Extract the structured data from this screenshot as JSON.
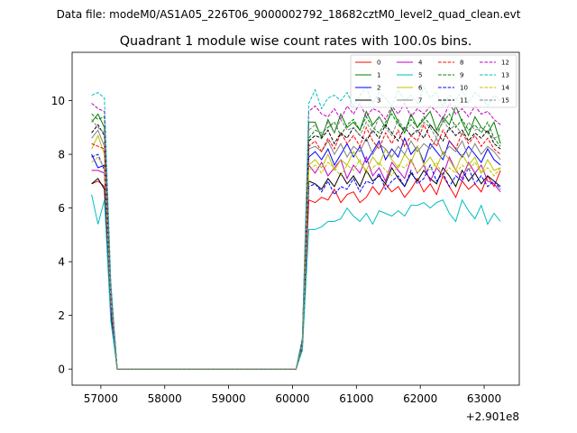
{
  "chart_data": {
    "type": "line",
    "suptitle": "Data file: modeM0/AS1A05_226T06_9000002792_18682cztM0_level2_quad_clean.evt",
    "title": "Quadrant 1 module wise count rates with 100.0s bins.",
    "xlabel": "",
    "ylabel": "",
    "x_offset_label": "+2.901e8",
    "xlim": [
      56550,
      63550
    ],
    "ylim": [
      -0.6,
      11.8
    ],
    "x_ticks": [
      57000,
      58000,
      59000,
      60000,
      61000,
      62000,
      63000
    ],
    "y_ticks": [
      0,
      2,
      4,
      6,
      8,
      10
    ],
    "legend_position": "upper right",
    "legend_columns": 4,
    "x": [
      56855,
      56955,
      57055,
      57155,
      57255,
      57355,
      57455,
      57555,
      57655,
      57755,
      57855,
      57955,
      58055,
      58155,
      58255,
      58355,
      58455,
      58555,
      58655,
      58755,
      58855,
      58955,
      59055,
      59155,
      59255,
      59355,
      59455,
      59555,
      59655,
      59755,
      59855,
      59955,
      60055,
      60155,
      60255,
      60355,
      60455,
      60555,
      60655,
      60755,
      60855,
      60955,
      61055,
      61155,
      61255,
      61355,
      61455,
      61555,
      61655,
      61755,
      61855,
      61955,
      62055,
      62155,
      62255,
      62355,
      62455,
      62555,
      62655,
      62755,
      62855,
      62955,
      63055,
      63155,
      63255
    ],
    "series": [
      {
        "name": "0",
        "color": "#ff0000",
        "dash": "solid",
        "values": [
          6.9,
          7.0,
          6.8,
          2.1,
          0,
          0,
          0,
          0,
          0,
          0,
          0,
          0,
          0,
          0,
          0,
          0,
          0,
          0,
          0,
          0,
          0,
          0,
          0,
          0,
          0,
          0,
          0,
          0,
          0,
          0,
          0,
          0,
          0,
          0.8,
          6.3,
          6.2,
          6.4,
          6.3,
          6.7,
          6.2,
          6.5,
          6.6,
          6.2,
          6.4,
          6.8,
          6.5,
          6.9,
          6.6,
          6.8,
          6.4,
          6.7,
          7.1,
          6.6,
          6.9,
          6.5,
          7.2,
          6.8,
          6.4,
          7.0,
          6.7,
          6.9,
          6.6,
          7.2,
          6.8,
          7.4
        ]
      },
      {
        "name": "1",
        "color": "#008000",
        "dash": "solid",
        "values": [
          9.2,
          9.5,
          9.0,
          3.0,
          0,
          0,
          0,
          0,
          0,
          0,
          0,
          0,
          0,
          0,
          0,
          0,
          0,
          0,
          0,
          0,
          0,
          0,
          0,
          0,
          0,
          0,
          0,
          0,
          0,
          0,
          0,
          0,
          0,
          1.1,
          9.2,
          9.2,
          8.6,
          9.3,
          8.8,
          9.5,
          9.0,
          9.2,
          8.9,
          9.6,
          9.1,
          9.4,
          9.0,
          9.7,
          9.2,
          8.8,
          9.5,
          9.0,
          9.3,
          9.6,
          8.9,
          9.4,
          9.1,
          9.8,
          9.2,
          8.7,
          9.4,
          9.0,
          8.8,
          9.2,
          8.4
        ]
      },
      {
        "name": "2",
        "color": "#0000ff",
        "dash": "solid",
        "values": [
          8.0,
          7.5,
          7.6,
          2.6,
          0,
          0,
          0,
          0,
          0,
          0,
          0,
          0,
          0,
          0,
          0,
          0,
          0,
          0,
          0,
          0,
          0,
          0,
          0,
          0,
          0,
          0,
          0,
          0,
          0,
          0,
          0,
          0,
          0,
          1.0,
          7.9,
          8.1,
          7.8,
          8.2,
          7.6,
          8.0,
          8.4,
          7.9,
          8.3,
          7.7,
          8.1,
          8.5,
          7.8,
          8.2,
          7.9,
          8.6,
          8.0,
          8.3,
          7.7,
          8.4,
          8.1,
          7.8,
          8.5,
          8.2,
          7.9,
          8.3,
          8.0,
          7.7,
          8.2,
          7.8,
          7.6
        ]
      },
      {
        "name": "3",
        "color": "#000000",
        "dash": "solid",
        "values": [
          6.9,
          7.1,
          6.7,
          2.0,
          0,
          0,
          0,
          0,
          0,
          0,
          0,
          0,
          0,
          0,
          0,
          0,
          0,
          0,
          0,
          0,
          0,
          0,
          0,
          0,
          0,
          0,
          0,
          0,
          0,
          0,
          0,
          0,
          0,
          0.8,
          7.0,
          6.9,
          6.7,
          7.1,
          6.8,
          7.3,
          6.9,
          7.2,
          6.8,
          7.4,
          7.0,
          7.2,
          6.9,
          7.5,
          7.1,
          6.8,
          7.3,
          7.0,
          7.4,
          7.1,
          6.9,
          7.5,
          7.2,
          6.8,
          7.4,
          7.0,
          7.3,
          6.9,
          7.2,
          7.0,
          6.8
        ]
      },
      {
        "name": "4",
        "color": "#bf00bf",
        "dash": "solid",
        "values": [
          7.4,
          7.4,
          7.3,
          2.3,
          0,
          0,
          0,
          0,
          0,
          0,
          0,
          0,
          0,
          0,
          0,
          0,
          0,
          0,
          0,
          0,
          0,
          0,
          0,
          0,
          0,
          0,
          0,
          0,
          0,
          0,
          0,
          0,
          0,
          0.9,
          7.6,
          7.3,
          7.7,
          7.2,
          7.5,
          7.8,
          7.1,
          7.6,
          7.3,
          7.9,
          7.2,
          7.5,
          7.0,
          7.7,
          7.4,
          7.1,
          7.8,
          7.3,
          7.6,
          7.0,
          7.5,
          7.2,
          7.9,
          7.4,
          7.1,
          7.7,
          7.3,
          7.6,
          7.0,
          6.9,
          6.6
        ]
      },
      {
        "name": "5",
        "color": "#00bfbf",
        "dash": "solid",
        "values": [
          6.5,
          5.4,
          6.3,
          1.8,
          0,
          0,
          0,
          0,
          0,
          0,
          0,
          0,
          0,
          0,
          0,
          0,
          0,
          0,
          0,
          0,
          0,
          0,
          0,
          0,
          0,
          0,
          0,
          0,
          0,
          0,
          0,
          0,
          0,
          0.7,
          5.2,
          5.2,
          5.3,
          5.5,
          5.5,
          5.6,
          6.0,
          5.7,
          5.5,
          5.8,
          5.4,
          5.9,
          5.8,
          5.7,
          5.9,
          5.7,
          6.1,
          6.1,
          6.2,
          6.0,
          6.2,
          6.3,
          5.8,
          5.5,
          6.3,
          5.9,
          5.6,
          6.1,
          5.4,
          5.8,
          5.5
        ]
      },
      {
        "name": "6",
        "color": "#bfbf00",
        "dash": "solid",
        "values": [
          8.2,
          8.7,
          8.0,
          2.8,
          0,
          0,
          0,
          0,
          0,
          0,
          0,
          0,
          0,
          0,
          0,
          0,
          0,
          0,
          0,
          0,
          0,
          0,
          0,
          0,
          0,
          0,
          0,
          0,
          0,
          0,
          0,
          0,
          0,
          1.0,
          7.6,
          7.8,
          7.5,
          8.0,
          7.4,
          7.8,
          7.6,
          8.1,
          7.7,
          7.4,
          7.9,
          7.6,
          8.2,
          7.8,
          7.5,
          8.0,
          7.7,
          8.3,
          7.6,
          7.9,
          7.5,
          8.1,
          7.8,
          7.4,
          8.0,
          7.6,
          7.9,
          7.3,
          7.8,
          7.4,
          7.5
        ]
      },
      {
        "name": "7",
        "color": "#808080",
        "dash": "solid",
        "values": [
          8.6,
          8.9,
          8.3,
          2.9,
          0,
          0,
          0,
          0,
          0,
          0,
          0,
          0,
          0,
          0,
          0,
          0,
          0,
          0,
          0,
          0,
          0,
          0,
          0,
          0,
          0,
          0,
          0,
          0,
          0,
          0,
          0,
          0,
          0,
          1.0,
          8.2,
          8.3,
          8.1,
          8.5,
          8.0,
          8.4,
          7.9,
          8.3,
          8.1,
          8.6,
          8.0,
          8.4,
          8.2,
          7.9,
          8.3,
          8.0,
          8.5,
          8.1,
          8.4,
          8.2,
          8.6,
          8.0,
          8.3,
          8.1,
          8.5,
          7.9,
          8.4,
          8.0,
          8.3,
          8.1,
          7.8
        ]
      },
      {
        "name": "8",
        "color": "#ff0000",
        "dash": "dashed",
        "values": [
          8.4,
          8.3,
          8.2,
          2.9,
          0,
          0,
          0,
          0,
          0,
          0,
          0,
          0,
          0,
          0,
          0,
          0,
          0,
          0,
          0,
          0,
          0,
          0,
          0,
          0,
          0,
          0,
          0,
          0,
          0,
          0,
          0,
          0,
          0,
          1.0,
          8.3,
          8.5,
          8.1,
          8.6,
          8.2,
          8.8,
          8.4,
          8.7,
          8.3,
          9.0,
          8.5,
          8.2,
          8.8,
          8.4,
          8.9,
          8.3,
          8.7,
          8.5,
          9.1,
          8.6,
          8.3,
          8.9,
          8.5,
          8.2,
          8.8,
          8.4,
          8.7,
          8.3,
          8.6,
          8.2,
          8.0
        ]
      },
      {
        "name": "9",
        "color": "#008000",
        "dash": "dashed",
        "values": [
          9.5,
          9.3,
          9.4,
          3.0,
          0,
          0,
          0,
          0,
          0,
          0,
          0,
          0,
          0,
          0,
          0,
          0,
          0,
          0,
          0,
          0,
          0,
          0,
          0,
          0,
          0,
          0,
          0,
          0,
          0,
          0,
          0,
          0,
          0,
          1.1,
          8.6,
          8.9,
          8.8,
          9.0,
          9.2,
          8.7,
          9.1,
          9.3,
          8.9,
          9.4,
          9.0,
          8.8,
          9.2,
          9.5,
          9.1,
          8.9,
          9.3,
          9.0,
          9.4,
          9.1,
          8.8,
          9.2,
          9.5,
          9.0,
          9.3,
          8.9,
          9.1,
          8.8,
          9.2,
          8.6,
          8.3
        ]
      },
      {
        "name": "10",
        "color": "#0000ff",
        "dash": "dashed",
        "values": [
          7.9,
          8.0,
          7.4,
          2.5,
          0,
          0,
          0,
          0,
          0,
          0,
          0,
          0,
          0,
          0,
          0,
          0,
          0,
          0,
          0,
          0,
          0,
          0,
          0,
          0,
          0,
          0,
          0,
          0,
          0,
          0,
          0,
          0,
          0,
          0.9,
          6.8,
          6.9,
          6.6,
          7.0,
          6.5,
          6.8,
          6.7,
          7.1,
          6.6,
          7.0,
          6.9,
          7.3,
          6.7,
          7.0,
          7.2,
          6.8,
          7.4,
          6.9,
          7.1,
          7.6,
          7.0,
          7.3,
          6.8,
          7.2,
          7.0,
          7.5,
          6.9,
          7.2,
          6.8,
          7.0,
          6.7
        ]
      },
      {
        "name": "11",
        "color": "#000000",
        "dash": "dashed",
        "values": [
          8.8,
          9.1,
          8.7,
          2.9,
          0,
          0,
          0,
          0,
          0,
          0,
          0,
          0,
          0,
          0,
          0,
          0,
          0,
          0,
          0,
          0,
          0,
          0,
          0,
          0,
          0,
          0,
          0,
          0,
          0,
          0,
          0,
          0,
          0,
          1.0,
          8.5,
          8.7,
          8.6,
          8.9,
          8.4,
          8.8,
          8.6,
          9.0,
          8.7,
          8.5,
          8.9,
          8.6,
          9.1,
          8.8,
          8.5,
          9.0,
          8.7,
          8.9,
          8.6,
          9.1,
          8.8,
          8.5,
          9.0,
          8.7,
          8.9,
          8.5,
          8.8,
          8.6,
          8.9,
          8.4,
          8.2
        ]
      },
      {
        "name": "12",
        "color": "#bf00bf",
        "dash": "dashed",
        "values": [
          9.9,
          9.7,
          9.6,
          3.1,
          0,
          0,
          0,
          0,
          0,
          0,
          0,
          0,
          0,
          0,
          0,
          0,
          0,
          0,
          0,
          0,
          0,
          0,
          0,
          0,
          0,
          0,
          0,
          0,
          0,
          0,
          0,
          0,
          0,
          1.1,
          9.6,
          9.8,
          9.5,
          9.4,
          9.7,
          9.3,
          9.8,
          9.5,
          9.9,
          9.4,
          9.7,
          9.6,
          9.3,
          9.8,
          9.5,
          9.9,
          9.4,
          9.7,
          9.5,
          9.8,
          9.6,
          9.3,
          9.9,
          9.5,
          9.7,
          9.4,
          9.8,
          9.5,
          9.6,
          9.3,
          9.1
        ]
      },
      {
        "name": "13",
        "color": "#00bfbf",
        "dash": "dashed",
        "values": [
          10.2,
          10.3,
          10.1,
          3.3,
          0,
          0,
          0,
          0,
          0,
          0,
          0,
          0,
          0,
          0,
          0,
          0,
          0,
          0,
          0,
          0,
          0,
          0,
          0,
          0,
          0,
          0,
          0,
          0,
          0,
          0,
          0,
          0,
          0,
          1.2,
          9.9,
          10.4,
          9.7,
          10.1,
          10.2,
          10.0,
          10.3,
          9.8,
          10.2,
          10.5,
          9.9,
          10.3,
          10.1,
          9.8,
          10.4,
          10.0,
          10.2,
          9.9,
          10.5,
          10.1,
          10.3,
          9.8,
          10.2,
          10.0,
          10.4,
          9.9,
          10.3,
          10.1,
          9.8,
          10.2,
          10.0
        ]
      },
      {
        "name": "14",
        "color": "#bfbf00",
        "dash": "dashed",
        "values": [
          7.7,
          7.9,
          7.5,
          2.6,
          0,
          0,
          0,
          0,
          0,
          0,
          0,
          0,
          0,
          0,
          0,
          0,
          0,
          0,
          0,
          0,
          0,
          0,
          0,
          0,
          0,
          0,
          0,
          0,
          0,
          0,
          0,
          0,
          0,
          0.9,
          7.4,
          7.6,
          7.3,
          7.7,
          7.5,
          7.2,
          7.6,
          7.4,
          7.8,
          7.3,
          7.5,
          7.7,
          7.4,
          7.2,
          7.6,
          7.5,
          7.8,
          7.3,
          7.6,
          7.4,
          7.7,
          7.2,
          7.5,
          7.3,
          7.6,
          7.4,
          7.7,
          7.3,
          7.5,
          7.2,
          7.5
        ]
      },
      {
        "name": "15",
        "color": "#808080",
        "dash": "dashed",
        "values": [
          9.3,
          9.0,
          8.8,
          2.9,
          0,
          0,
          0,
          0,
          0,
          0,
          0,
          0,
          0,
          0,
          0,
          0,
          0,
          0,
          0,
          0,
          0,
          0,
          0,
          0,
          0,
          0,
          0,
          0,
          0,
          0,
          0,
          0,
          0,
          1.0,
          8.9,
          9.1,
          8.7,
          9.2,
          8.8,
          9.3,
          8.9,
          9.0,
          8.7,
          9.2,
          8.8,
          9.4,
          9.0,
          8.7,
          9.3,
          8.9,
          9.1,
          8.8,
          9.2,
          9.0,
          8.6,
          9.3,
          8.9,
          9.1,
          8.7,
          9.2,
          8.9,
          9.0,
          8.8,
          8.6,
          8.7
        ]
      }
    ]
  }
}
